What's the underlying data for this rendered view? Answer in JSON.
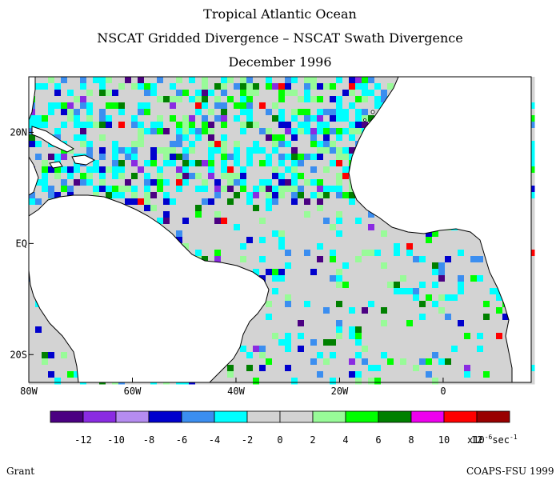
{
  "chart_data": {
    "type": "heatmap",
    "title": "Tropical Atlantic Ocean",
    "subtitle": "NSCAT Gridded Divergence – NSCAT Swath Divergence",
    "date": "December 1996",
    "x_ticks": [
      {
        "label": "80W",
        "value": -80
      },
      {
        "label": "60W",
        "value": -60
      },
      {
        "label": "40W",
        "value": -40
      },
      {
        "label": "20W",
        "value": -20
      },
      {
        "label": "0",
        "value": 0
      }
    ],
    "y_ticks": [
      {
        "label": "20N",
        "value": 20
      },
      {
        "label": "EQ",
        "value": 0
      },
      {
        "label": "20S",
        "value": -20
      }
    ],
    "xlim": [
      -80,
      17
    ],
    "ylim": [
      -25,
      30
    ],
    "land_color": "#ffffff",
    "levels": [
      {
        "min": -14,
        "max": -12,
        "color": "#4b0082"
      },
      {
        "min": -12,
        "max": -10,
        "color": "#8a2be2"
      },
      {
        "min": -10,
        "max": -8,
        "color": "#b58cf0"
      },
      {
        "min": -8,
        "max": -6,
        "color": "#0000cd"
      },
      {
        "min": -6,
        "max": -4,
        "color": "#3b8ef0"
      },
      {
        "min": -4,
        "max": -2,
        "color": "#00ffff"
      },
      {
        "min": -2,
        "max": 0,
        "color": "#d3d3d3"
      },
      {
        "min": 0,
        "max": 2,
        "color": "#d3d3d3"
      },
      {
        "min": 2,
        "max": 4,
        "color": "#98fb98"
      },
      {
        "min": 4,
        "max": 6,
        "color": "#00ff00"
      },
      {
        "min": 6,
        "max": 8,
        "color": "#008000"
      },
      {
        "min": 8,
        "max": 10,
        "color": "#ee00ee"
      },
      {
        "min": 10,
        "max": 12,
        "color": "#ff0000"
      },
      {
        "min": 12,
        "max": 14,
        "color": "#990000"
      }
    ],
    "colorbar_labels": [
      "-12",
      "-10",
      "-8",
      "-6",
      "-4",
      "-2",
      "0",
      "2",
      "4",
      "6",
      "8",
      "10",
      "12"
    ],
    "colorbar_unit": "x10",
    "colorbar_unit_exp": "-6",
    "colorbar_unit_tail": "sec",
    "colorbar_unit_tail_exp": "-1"
  },
  "footer": {
    "left": "Grant",
    "right": "COAPS-FSU 1999"
  }
}
